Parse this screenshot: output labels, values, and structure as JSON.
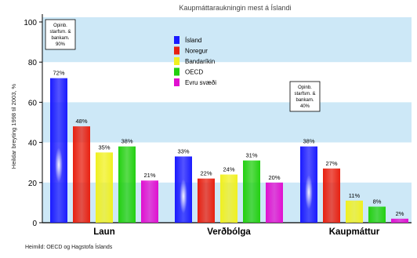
{
  "chart_data": {
    "type": "bar",
    "title": "Kaupmáttaraukningin mest á Íslandi",
    "ylabel": "Heildar breyting 1998 til 2003, %",
    "ylim": [
      0,
      100
    ],
    "yticks": [
      0,
      20,
      40,
      60,
      80,
      100
    ],
    "grid": "horizontal bands",
    "legend_position": "top-center",
    "categories": [
      "Laun",
      "Verðbólga",
      "Kaupmáttur"
    ],
    "series": [
      {
        "name": "Ísland",
        "color": "#1a1aff",
        "values": [
          72,
          33,
          38
        ],
        "labels": [
          "72%",
          "33%",
          "38%"
        ]
      },
      {
        "name": "Noregur",
        "color": "#e82010",
        "values": [
          48,
          22,
          27
        ],
        "labels": [
          "48%",
          "22%",
          "27%"
        ]
      },
      {
        "name": "Bandaríkin",
        "color": "#f0f020",
        "values": [
          35,
          24,
          11
        ],
        "labels": [
          "35%",
          "24%",
          "11%"
        ]
      },
      {
        "name": "OECD",
        "color": "#22d010",
        "values": [
          38,
          31,
          8
        ],
        "labels": [
          "38%",
          "31%",
          "8%"
        ]
      },
      {
        "name": "Evru svæði",
        "color": "#e010d0",
        "values": [
          21,
          20,
          2
        ],
        "labels": [
          "21%",
          "20%",
          "2%"
        ]
      }
    ],
    "annotations": [
      {
        "text": [
          "Opinb.",
          "starfsm. &",
          "bankam.",
          "90%"
        ]
      },
      {
        "text": [
          "Opinb.",
          "starfsm. &",
          "bankam.",
          "40%"
        ]
      }
    ],
    "source": "Heimild: OECD og Hagstofa Íslands"
  },
  "colors": {
    "band": "#cde8f7",
    "axis": "#000000"
  }
}
